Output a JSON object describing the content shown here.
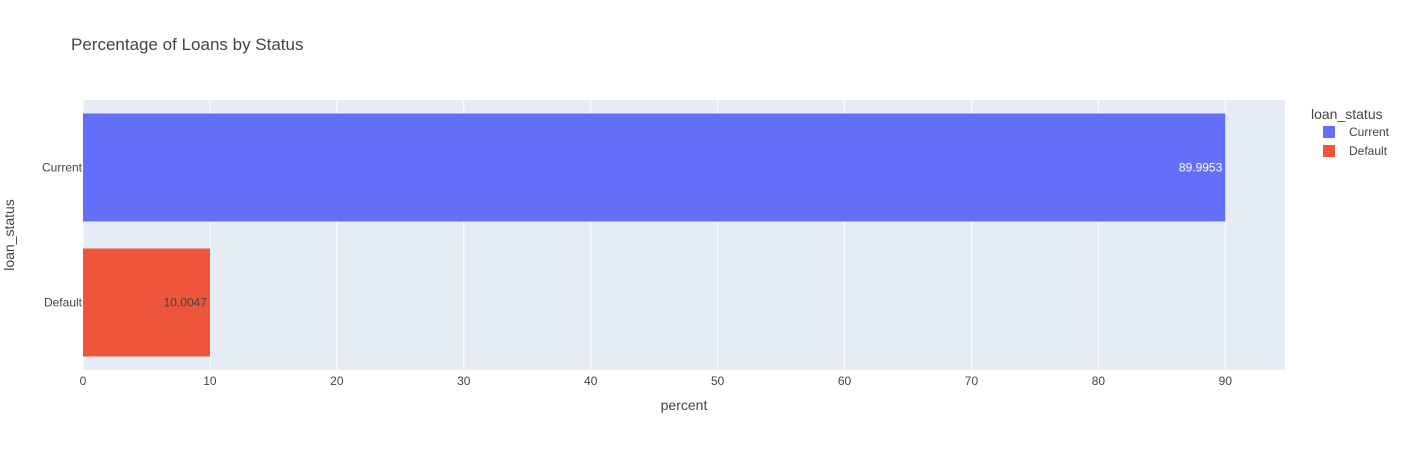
{
  "chart_data": {
    "type": "bar",
    "orientation": "horizontal",
    "title": "Percentage of Loans by Status",
    "xlabel": "percent",
    "ylabel": "loan_status",
    "xlim": [
      0,
      94.7
    ],
    "x_ticks": [
      "0",
      "10",
      "20",
      "30",
      "40",
      "50",
      "60",
      "70",
      "80",
      "90"
    ],
    "categories": [
      "Current",
      "Default"
    ],
    "series": [
      {
        "name": "Current",
        "category": "Current",
        "value": 89.9953,
        "label": "89.9953",
        "color": "#636efa",
        "label_color": "#ffffff"
      },
      {
        "name": "Default",
        "category": "Default",
        "value": 10.0047,
        "label": "10.0047",
        "color": "#ef553b",
        "label_color": "#444444"
      }
    ],
    "legend": {
      "title": "loan_status",
      "placement": "top-right"
    },
    "grid": true,
    "plot_background": "#e5ecf6",
    "grid_color": "#ffffff"
  }
}
